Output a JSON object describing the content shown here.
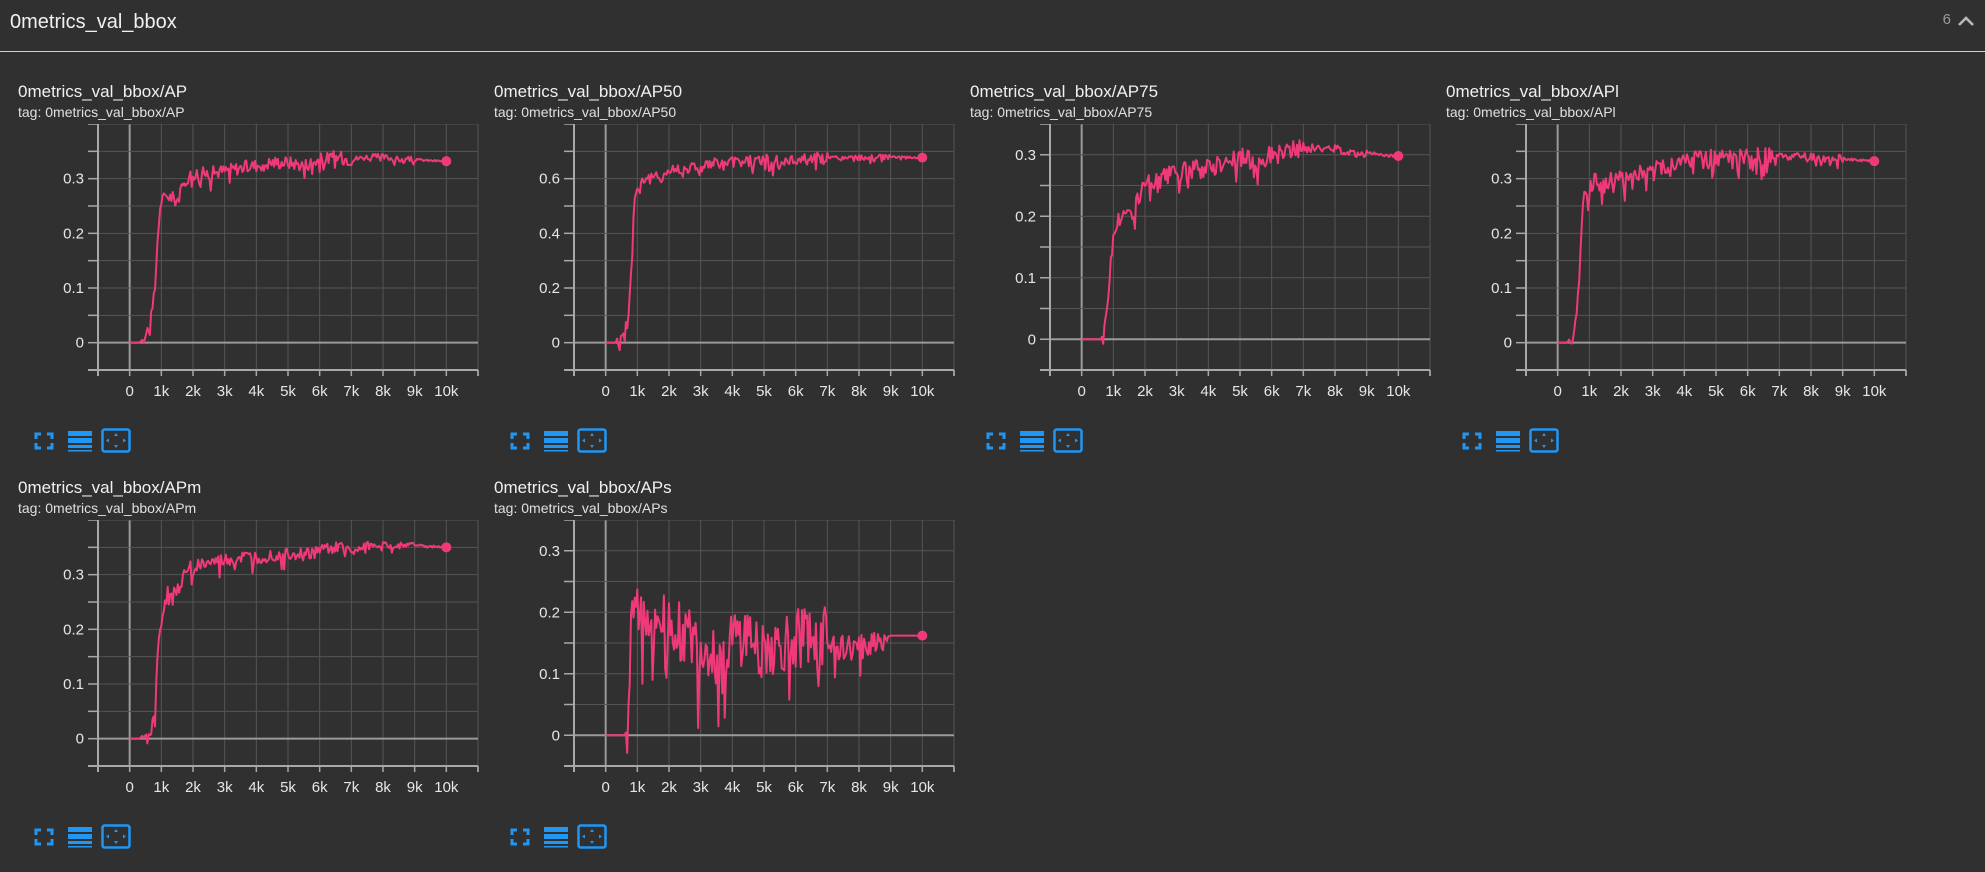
{
  "group": {
    "title": "0metrics_val_bbox",
    "count": "6",
    "collapse_icon": "chevron-up-icon"
  },
  "colors": {
    "background": "#303030",
    "series": "#f0397a",
    "grid": "#5a5a5a",
    "axis": "#a8a8a8",
    "accent": "#2196f3"
  },
  "toolbar": {
    "icons": [
      "fullscreen-icon",
      "data-table-icon",
      "fit-domain-icon"
    ]
  },
  "cards": [
    {
      "title": "0metrics_val_bbox/AP",
      "tag": "tag: 0metrics_val_bbox/AP"
    },
    {
      "title": "0metrics_val_bbox/AP50",
      "tag": "tag: 0metrics_val_bbox/AP50"
    },
    {
      "title": "0metrics_val_bbox/AP75",
      "tag": "tag: 0metrics_val_bbox/AP75"
    },
    {
      "title": "0metrics_val_bbox/APl",
      "tag": "tag: 0metrics_val_bbox/APl"
    },
    {
      "title": "0metrics_val_bbox/APm",
      "tag": "tag: 0metrics_val_bbox/APm"
    },
    {
      "title": "0metrics_val_bbox/APs",
      "tag": "tag: 0metrics_val_bbox/APs"
    }
  ],
  "chart_data": [
    {
      "type": "line",
      "title": "0metrics_val_bbox/AP",
      "xlabel": "",
      "ylabel": "",
      "x_ticks": [
        "0",
        "1k",
        "2k",
        "3k",
        "4k",
        "5k",
        "6k",
        "7k",
        "8k",
        "9k",
        "10k"
      ],
      "y_ticks": [
        "0",
        "0.1",
        "0.2",
        "0.3"
      ],
      "xlim": [
        -1000,
        11000
      ],
      "ylim": [
        -0.05,
        0.4
      ],
      "grid": true,
      "series": [
        {
          "name": "0metrics_val_bbox/AP",
          "color": "#f0397a",
          "x": [
            0,
            300,
            500,
            700,
            800,
            900,
            1000,
            1200,
            1500,
            1800,
            2000,
            2500,
            3000,
            3500,
            4000,
            4500,
            5000,
            5500,
            6000,
            6500,
            7000,
            7500,
            8000,
            8500,
            9000,
            9500,
            10000
          ],
          "values": [
            0,
            0,
            0.01,
            0.05,
            0.1,
            0.21,
            0.26,
            0.27,
            0.26,
            0.3,
            0.31,
            0.31,
            0.315,
            0.32,
            0.325,
            0.33,
            0.33,
            0.325,
            0.335,
            0.34,
            0.335,
            0.34,
            0.34,
            0.335,
            0.335,
            0.333,
            0.332
          ],
          "noise": 0.012,
          "last_value": 0.332
        }
      ]
    },
    {
      "type": "line",
      "title": "0metrics_val_bbox/AP50",
      "xlabel": "",
      "ylabel": "",
      "x_ticks": [
        "0",
        "1k",
        "2k",
        "3k",
        "4k",
        "5k",
        "6k",
        "7k",
        "8k",
        "9k",
        "10k"
      ],
      "y_ticks": [
        "0",
        "0.2",
        "0.4",
        "0.6"
      ],
      "xlim": [
        -1000,
        11000
      ],
      "ylim": [
        -0.1,
        0.8
      ],
      "grid": true,
      "series": [
        {
          "name": "0metrics_val_bbox/AP50",
          "color": "#f0397a",
          "x": [
            0,
            300,
            500,
            700,
            800,
            900,
            1000,
            1200,
            1500,
            1800,
            2000,
            2500,
            3000,
            3500,
            4000,
            4500,
            5000,
            5500,
            6000,
            6500,
            7000,
            7500,
            8000,
            8500,
            9000,
            9500,
            10000
          ],
          "values": [
            0,
            0,
            0.02,
            0.08,
            0.25,
            0.52,
            0.57,
            0.6,
            0.6,
            0.61,
            0.63,
            0.64,
            0.645,
            0.655,
            0.66,
            0.665,
            0.67,
            0.66,
            0.67,
            0.675,
            0.675,
            0.675,
            0.678,
            0.678,
            0.68,
            0.678,
            0.677
          ],
          "noise": 0.022,
          "last_value": 0.677
        }
      ]
    },
    {
      "type": "line",
      "title": "0metrics_val_bbox/AP75",
      "xlabel": "",
      "ylabel": "",
      "x_ticks": [
        "0",
        "1k",
        "2k",
        "3k",
        "4k",
        "5k",
        "6k",
        "7k",
        "8k",
        "9k",
        "10k"
      ],
      "y_ticks": [
        "0",
        "0.1",
        "0.2",
        "0.3"
      ],
      "xlim": [
        -1000,
        11000
      ],
      "ylim": [
        -0.05,
        0.35
      ],
      "grid": true,
      "series": [
        {
          "name": "0metrics_val_bbox/AP75",
          "color": "#f0397a",
          "x": [
            0,
            300,
            600,
            700,
            800,
            900,
            1000,
            1200,
            1500,
            1800,
            2000,
            2500,
            3000,
            3500,
            4000,
            4500,
            5000,
            5500,
            6000,
            6500,
            7000,
            7500,
            8000,
            8500,
            9000,
            9500,
            10000
          ],
          "values": [
            0,
            0,
            0,
            0.01,
            0.04,
            0.11,
            0.17,
            0.2,
            0.2,
            0.23,
            0.25,
            0.26,
            0.27,
            0.275,
            0.28,
            0.29,
            0.295,
            0.29,
            0.3,
            0.305,
            0.31,
            0.31,
            0.31,
            0.305,
            0.303,
            0.3,
            0.298
          ],
          "noise": 0.016,
          "last_value": 0.298
        }
      ]
    },
    {
      "type": "line",
      "title": "0metrics_val_bbox/APl",
      "xlabel": "",
      "ylabel": "",
      "x_ticks": [
        "0",
        "1k",
        "2k",
        "3k",
        "4k",
        "5k",
        "6k",
        "7k",
        "8k",
        "9k",
        "10k"
      ],
      "y_ticks": [
        "0",
        "0.1",
        "0.2",
        "0.3"
      ],
      "xlim": [
        -1000,
        11000
      ],
      "ylim": [
        -0.05,
        0.4
      ],
      "grid": true,
      "series": [
        {
          "name": "0metrics_val_bbox/APl",
          "color": "#f0397a",
          "x": [
            0,
            300,
            500,
            600,
            700,
            800,
            1000,
            1200,
            1500,
            1800,
            2000,
            2500,
            3000,
            3500,
            4000,
            4500,
            5000,
            5500,
            6000,
            6500,
            7000,
            7500,
            8000,
            8500,
            9000,
            9500,
            10000
          ],
          "values": [
            0,
            0,
            0.02,
            0.04,
            0.15,
            0.27,
            0.29,
            0.295,
            0.29,
            0.3,
            0.3,
            0.31,
            0.32,
            0.325,
            0.33,
            0.34,
            0.34,
            0.335,
            0.34,
            0.34,
            0.34,
            0.34,
            0.34,
            0.335,
            0.337,
            0.333,
            0.332
          ],
          "noise": 0.016,
          "last_value": 0.332
        }
      ]
    },
    {
      "type": "line",
      "title": "0metrics_val_bbox/APm",
      "xlabel": "",
      "ylabel": "",
      "x_ticks": [
        "0",
        "1k",
        "2k",
        "3k",
        "4k",
        "5k",
        "6k",
        "7k",
        "8k",
        "9k",
        "10k"
      ],
      "y_ticks": [
        "0",
        "0.1",
        "0.2",
        "0.3"
      ],
      "xlim": [
        -1000,
        11000
      ],
      "ylim": [
        -0.05,
        0.4
      ],
      "grid": true,
      "series": [
        {
          "name": "0metrics_val_bbox/APm",
          "color": "#f0397a",
          "x": [
            0,
            300,
            500,
            700,
            800,
            900,
            1000,
            1200,
            1500,
            1800,
            2000,
            2500,
            3000,
            3500,
            4000,
            4500,
            5000,
            5500,
            6000,
            6500,
            7000,
            7500,
            8000,
            8500,
            9000,
            9500,
            10000
          ],
          "values": [
            0,
            0,
            0.01,
            0.02,
            0.05,
            0.18,
            0.2,
            0.27,
            0.27,
            0.31,
            0.315,
            0.32,
            0.325,
            0.33,
            0.33,
            0.335,
            0.34,
            0.335,
            0.345,
            0.35,
            0.34,
            0.355,
            0.355,
            0.353,
            0.355,
            0.352,
            0.35
          ],
          "noise": 0.012,
          "last_value": 0.35
        }
      ]
    },
    {
      "type": "line",
      "title": "0metrics_val_bbox/APs",
      "xlabel": "",
      "ylabel": "",
      "x_ticks": [
        "0",
        "1k",
        "2k",
        "3k",
        "4k",
        "5k",
        "6k",
        "7k",
        "8k",
        "9k",
        "10k"
      ],
      "y_ticks": [
        "0",
        "0.1",
        "0.2",
        "0.3"
      ],
      "xlim": [
        -1000,
        11000
      ],
      "ylim": [
        -0.05,
        0.35
      ],
      "grid": true,
      "series": [
        {
          "name": "0metrics_val_bbox/APs",
          "color": "#f0397a",
          "x": [
            0,
            300,
            600,
            700,
            800,
            1000,
            1500,
            2000,
            2500,
            3000,
            3500,
            4000,
            4500,
            5000,
            5500,
            6000,
            6500,
            7000,
            7500,
            8000,
            8500,
            8900,
            9000,
            10000
          ],
          "values": [
            0,
            0,
            0,
            0.02,
            0.2,
            0.2,
            0.19,
            0.18,
            0.16,
            0.14,
            0.14,
            0.15,
            0.16,
            0.14,
            0.14,
            0.16,
            0.16,
            0.16,
            0.14,
            0.14,
            0.155,
            0.16,
            0.162,
            0.162
          ],
          "noise": 0.05,
          "last_value": 0.162
        }
      ]
    }
  ]
}
